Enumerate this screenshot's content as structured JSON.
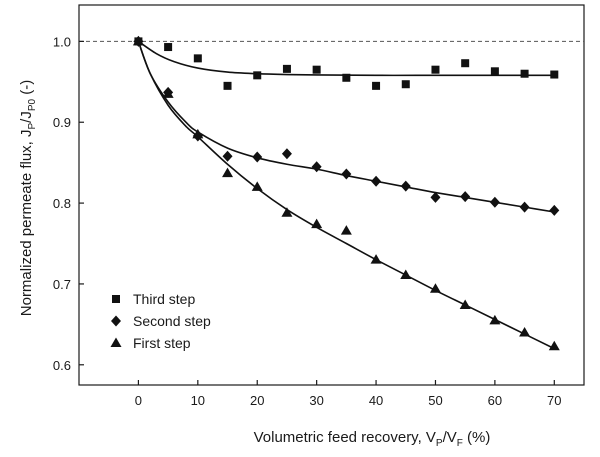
{
  "chart_data": {
    "type": "scatter",
    "xlabel": {
      "prefix": "Volumetric feed recovery, V",
      "sub1": "P",
      "mid": "/V",
      "sub2": "F",
      "suffix": " (%)"
    },
    "ylabel": {
      "prefix": "Normalized permeate flux, J",
      "sub1": "P",
      "mid": "/J",
      "sub2": "P0",
      "suffix": " (-)"
    },
    "xlim": [
      -10,
      75
    ],
    "ylim": [
      0.575,
      1.045
    ],
    "xticks": [
      0,
      10,
      20,
      30,
      40,
      50,
      60,
      70
    ],
    "yticks": [
      0.6,
      0.7,
      0.8,
      0.9,
      1.0
    ],
    "ytick_labels": [
      "0.6",
      "0.7",
      "0.8",
      "0.9",
      "1.0"
    ],
    "reference_line": {
      "y": 1.0,
      "style": "dashed"
    },
    "grid": false,
    "legend_position": "lower-left",
    "series": [
      {
        "name": "Third step",
        "marker": "square",
        "x": [
          0,
          5,
          10,
          15,
          20,
          25,
          30,
          35,
          40,
          45,
          50,
          55,
          60,
          65,
          70
        ],
        "y": [
          1.0,
          0.993,
          0.979,
          0.945,
          0.958,
          0.966,
          0.965,
          0.955,
          0.945,
          0.947,
          0.965,
          0.973,
          0.963,
          0.96,
          0.959
        ],
        "fit": {
          "x": [
            0,
            3,
            6,
            10,
            15,
            20,
            25,
            30,
            40,
            50,
            60,
            70
          ],
          "y": [
            1.0,
            0.985,
            0.975,
            0.967,
            0.962,
            0.96,
            0.959,
            0.9585,
            0.958,
            0.958,
            0.958,
            0.958
          ]
        }
      },
      {
        "name": "Second step",
        "marker": "diamond",
        "x": [
          0,
          5,
          10,
          15,
          20,
          25,
          30,
          35,
          40,
          45,
          50,
          55,
          60,
          65,
          70
        ],
        "y": [
          1.0,
          0.937,
          0.883,
          0.858,
          0.857,
          0.861,
          0.845,
          0.836,
          0.827,
          0.821,
          0.807,
          0.808,
          0.801,
          0.795,
          0.791
        ],
        "fit": {
          "x": [
            0,
            2,
            5,
            8,
            10,
            15,
            20,
            25,
            30,
            35,
            40,
            45,
            50,
            55,
            60,
            65,
            70
          ],
          "y": [
            1.0,
            0.96,
            0.925,
            0.9,
            0.888,
            0.868,
            0.856,
            0.848,
            0.842,
            0.834,
            0.827,
            0.82,
            0.813,
            0.807,
            0.801,
            0.795,
            0.789
          ]
        }
      },
      {
        "name": "First step",
        "marker": "triangle",
        "x": [
          0,
          5,
          10,
          15,
          20,
          25,
          30,
          35,
          40,
          45,
          50,
          55,
          60,
          65,
          70
        ],
        "y": [
          1.0,
          0.935,
          0.885,
          0.837,
          0.82,
          0.788,
          0.774,
          0.766,
          0.73,
          0.711,
          0.694,
          0.674,
          0.655,
          0.64,
          0.623
        ],
        "fit": {
          "x": [
            0,
            2,
            5,
            8,
            10,
            15,
            20,
            25,
            30,
            35,
            40,
            45,
            50,
            55,
            60,
            65,
            70
          ],
          "y": [
            1.0,
            0.96,
            0.921,
            0.895,
            0.882,
            0.848,
            0.818,
            0.792,
            0.77,
            0.75,
            0.73,
            0.711,
            0.692,
            0.674,
            0.656,
            0.638,
            0.62
          ]
        }
      }
    ]
  }
}
